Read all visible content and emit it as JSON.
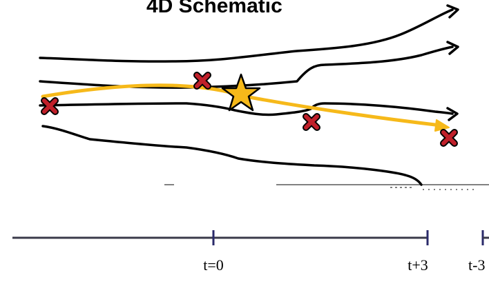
{
  "title": "4D Schematic",
  "timeline": {
    "ticks": [
      {
        "label": "t=0"
      },
      {
        "label": "t+3"
      },
      {
        "label": "t-3"
      }
    ]
  },
  "colors": {
    "track_line": "#000000",
    "forecast_track": "#f6b91a",
    "error_marker": "#c0202a",
    "star_marker": "#f6b91a",
    "axis": "#3a3a4a",
    "tick_mark": "#2a2a6a"
  },
  "icons": {
    "error_marker": "x-cross-icon",
    "star_marker": "star-icon",
    "arrowhead": "arrowhead-icon"
  }
}
